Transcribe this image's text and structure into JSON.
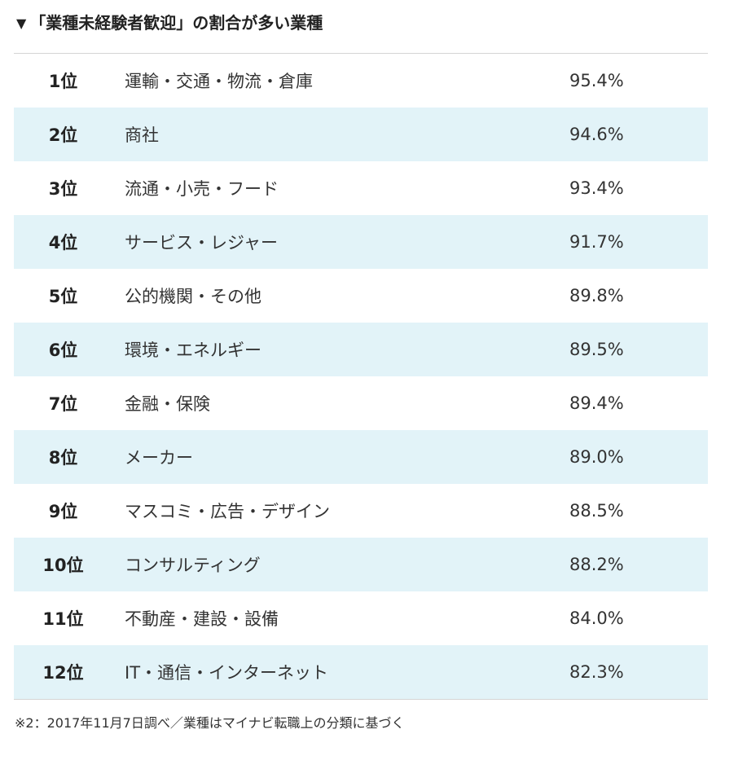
{
  "heading": {
    "marker": "▼",
    "title": "「業種未経験者歓迎」の割合が多い業種"
  },
  "table": {
    "rows": [
      {
        "rank": "1位",
        "industry": "運輸・交通・物流・倉庫",
        "percent": "95.4%"
      },
      {
        "rank": "2位",
        "industry": "商社",
        "percent": "94.6%"
      },
      {
        "rank": "3位",
        "industry": "流通・小売・フード",
        "percent": "93.4%"
      },
      {
        "rank": "4位",
        "industry": "サービス・レジャー",
        "percent": "91.7%"
      },
      {
        "rank": "5位",
        "industry": "公的機関・その他",
        "percent": "89.8%"
      },
      {
        "rank": "6位",
        "industry": "環境・エネルギー",
        "percent": "89.5%"
      },
      {
        "rank": "7位",
        "industry": "金融・保険",
        "percent": "89.4%"
      },
      {
        "rank": "8位",
        "industry": "メーカー",
        "percent": "89.0%"
      },
      {
        "rank": "9位",
        "industry": "マスコミ・広告・デザイン",
        "percent": "88.5%"
      },
      {
        "rank": "10位",
        "industry": "コンサルティング",
        "percent": "88.2%"
      },
      {
        "rank": "11位",
        "industry": "不動産・建設・設備",
        "percent": "84.0%"
      },
      {
        "rank": "12位",
        "industry": "IT・通信・インターネット",
        "percent": "82.3%"
      }
    ]
  },
  "footnote": "※2：2017年11月7日調べ／業種はマイナビ転職上の分類に基づく",
  "colors": {
    "row_alt_background": "#e2f3f8",
    "border": "#d5d5d5",
    "text": "#333333"
  }
}
